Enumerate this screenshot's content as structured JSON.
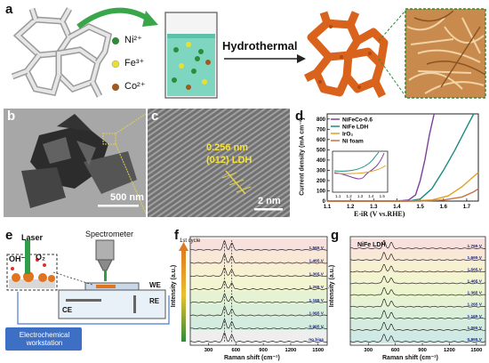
{
  "panel_a": {
    "letter": "a",
    "ions": [
      {
        "label": "Ni²⁺",
        "color": "#2e8b3a"
      },
      {
        "label": "Fe³⁺",
        "color": "#e8e030"
      },
      {
        "label": "Co²⁺",
        "color": "#a05a20"
      }
    ],
    "step_label": "Hydrothermal"
  },
  "panel_b": {
    "letter": "b",
    "scale_bar": "500 nm"
  },
  "panel_c": {
    "letter": "c",
    "d_spacing": "0.256 nm",
    "plane": "(012) LDH",
    "scale_bar": "2 nm"
  },
  "panel_d": {
    "letter": "d",
    "legend": [
      "NiFeCo-0.6",
      "NiFe LDH",
      "IrO₂",
      "Ni foam"
    ],
    "colors": [
      "#7b3f9e",
      "#1a8a80",
      "#e0a020",
      "#c87040"
    ],
    "xlabel": "E-iR (V vs.RHE)",
    "ylabel": "Current density (mA cm⁻²)",
    "xticks": [
      "1.1",
      "1.2",
      "1.3",
      "1.4",
      "1.5",
      "1.6",
      "1.7"
    ],
    "yticks": [
      "0",
      "100",
      "200",
      "300",
      "400",
      "500",
      "600",
      "700",
      "800"
    ],
    "inset_xticks": [
      "1.1",
      "1.2",
      "1.3",
      "1.4",
      "1.5"
    ]
  },
  "panel_e": {
    "letter": "e",
    "laser": "Laser",
    "oh": "OH⁻",
    "o2": "O₂",
    "spectrometer": "Spectrometer",
    "we": "WE",
    "re": "RE",
    "ce": "CE",
    "workstation": "Electrochemical workstation"
  },
  "panel_f": {
    "letter": "f",
    "cycle_label": "1st cycle",
    "ylabel": "Intensity (a.u.)",
    "xlabel": "Raman shift (cm⁻¹)",
    "xticks": [
      "300",
      "600",
      "900",
      "1200",
      "1500"
    ],
    "potentials": [
      "1.565 V",
      "1.465 V",
      "1.365 V",
      "1.265 V",
      "1.165 V",
      "1.065 V",
      "0.965 V",
      "no bias"
    ]
  },
  "panel_g": {
    "letter": "g",
    "title": "NiFe LDH",
    "ylabel": "Intensity (a.u.)",
    "xlabel": "Raman shift (cm⁻¹)",
    "xticks": [
      "300",
      "600",
      "900",
      "1200",
      "1500"
    ],
    "potentials": [
      "1.765 V",
      "1.665 V",
      "1.565 V",
      "1.465 V",
      "1.365 V",
      "1.265 V",
      "1.165 V",
      "1.065 V",
      "0.965 V"
    ]
  },
  "chart_data": [
    {
      "type": "line",
      "panel": "d",
      "xlabel": "E-iR (V vs.RHE)",
      "ylabel": "Current density (mA cm⁻²)",
      "xlim": [
        1.1,
        1.75
      ],
      "ylim": [
        0,
        850
      ],
      "series": [
        {
          "name": "NiFeCo-0.6",
          "x": [
            1.4,
            1.45,
            1.48,
            1.5,
            1.52,
            1.54,
            1.56
          ],
          "values": [
            0,
            10,
            60,
            200,
            400,
            650,
            850
          ]
        },
        {
          "name": "NiFe LDH",
          "x": [
            1.45,
            1.5,
            1.55,
            1.6,
            1.65,
            1.7,
            1.73
          ],
          "values": [
            0,
            20,
            120,
            300,
            500,
            720,
            850
          ]
        },
        {
          "name": "IrO₂",
          "x": [
            1.45,
            1.55,
            1.62,
            1.68,
            1.72,
            1.75
          ],
          "values": [
            0,
            10,
            50,
            140,
            220,
            280
          ]
        },
        {
          "name": "Ni foam",
          "x": [
            1.5,
            1.6,
            1.68,
            1.73,
            1.75
          ],
          "values": [
            0,
            10,
            40,
            90,
            120
          ]
        }
      ]
    },
    {
      "type": "line",
      "panel": "f",
      "xlabel": "Raman shift (cm⁻¹)",
      "ylabel": "Intensity (a.u.)",
      "xlim": [
        100,
        1600
      ],
      "peaks": [
        475,
        555
      ],
      "series_names": [
        "1.565 V",
        "1.465 V",
        "1.365 V",
        "1.265 V",
        "1.165 V",
        "1.065 V",
        "0.965 V",
        "no bias"
      ]
    },
    {
      "type": "line",
      "panel": "g",
      "xlabel": "Raman shift (cm⁻¹)",
      "ylabel": "Intensity (a.u.)",
      "xlim": [
        100,
        1600
      ],
      "peaks": [
        475,
        555
      ],
      "series_names": [
        "1.765 V",
        "1.665 V",
        "1.565 V",
        "1.465 V",
        "1.365 V",
        "1.265 V",
        "1.165 V",
        "1.065 V",
        "0.965 V"
      ]
    }
  ]
}
